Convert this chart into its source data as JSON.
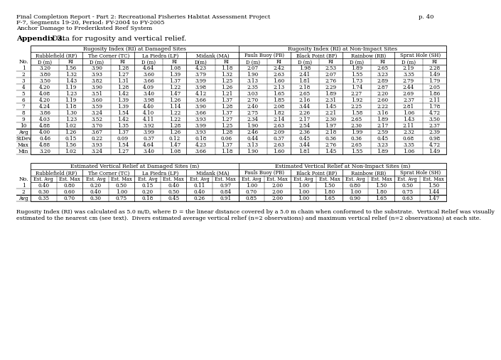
{
  "header_line1": "Final Completion Report - Part 2: Recreational Fisheries Habitat Assessment Project",
  "header_line2": "F-7, Segments 19-20, Period: FY-2004 to FY-2005",
  "header_line3": "Anchor Damage to Frederiksted Reef System",
  "page_num": "p. 40",
  "appendix_title": "Appendix 3.",
  "appendix_subtitle": " Data for rugosity and vertical relief.",
  "table1_title": "Rugosity Index (RI) at Damaged Sites",
  "table1_subtitle_right": "Rugosity Index (RI) at Non-Impact Sites",
  "site_groups_t1": [
    "Rubblefield (RF)",
    "The Corner (TC)",
    "La Piedra (LP)",
    "Midank (MA)",
    "Pauls Buoy (PB)",
    "Black Point (BP)",
    "Rainbow (RB)",
    "Sprat Hole (SH)"
  ],
  "table1_data": [
    [
      "1",
      "3.20",
      "1.56",
      "3.90",
      "1.28",
      "4.64",
      "1.08",
      "4.23",
      "1.18",
      "2.07",
      "2.42",
      "1.98",
      "2.53",
      "1.89",
      "2.65",
      "2.19",
      "2.28"
    ],
    [
      "2",
      "3.80",
      "1.32",
      "3.93",
      "1.27",
      "3.60",
      "1.39",
      "3.79",
      "1.32",
      "1.90",
      "2.63",
      "2.41",
      "2.07",
      "1.55",
      "3.23",
      "3.35",
      "1.49"
    ],
    [
      "3",
      "3.50",
      "1.43",
      "3.82",
      "1.31",
      "3.66",
      "1.37",
      "3.99",
      "1.25",
      "3.13",
      "1.60",
      "1.81",
      "2.76",
      "1.73",
      "2.89",
      "2.79",
      "1.79"
    ],
    [
      "4",
      "4.20",
      "1.19",
      "3.90",
      "1.28",
      "4.09",
      "1.22",
      "3.98",
      "1.26",
      "2.35",
      "2.13",
      "2.18",
      "2.29",
      "1.74",
      "2.87",
      "2.44",
      "2.05"
    ],
    [
      "5",
      "4.08",
      "1.23",
      "3.51",
      "1.42",
      "3.40",
      "1.47",
      "4.12",
      "1.21",
      "3.03",
      "1.65",
      "2.65",
      "1.89",
      "2.27",
      "2.20",
      "2.69",
      "1.86"
    ],
    [
      "6",
      "4.20",
      "1.19",
      "3.60",
      "1.39",
      "3.98",
      "1.26",
      "3.66",
      "1.37",
      "2.70",
      "1.85",
      "2.16",
      "2.31",
      "1.92",
      "2.60",
      "2.37",
      "2.11"
    ],
    [
      "7",
      "4.24",
      "1.18",
      "3.59",
      "1.39",
      "4.40",
      "1.14",
      "3.90",
      "1.28",
      "2.40",
      "2.08",
      "3.44",
      "1.45",
      "2.25",
      "2.22",
      "2.81",
      "1.78"
    ],
    [
      "8",
      "3.86",
      "1.30",
      "3.24",
      "1.54",
      "4.10",
      "1.22",
      "3.66",
      "1.37",
      "2.75",
      "1.82",
      "2.26",
      "2.21",
      "1.58",
      "3.16",
      "1.06",
      "4.72"
    ],
    [
      "9",
      "4.03",
      "1.23",
      "3.52",
      "1.42",
      "4.11",
      "1.22",
      "3.93",
      "1.27",
      "2.34",
      "2.14",
      "2.17",
      "2.30",
      "2.65",
      "1.89",
      "1.43",
      "3.50"
    ],
    [
      "10",
      "4.88",
      "1.02",
      "3.70",
      "1.35",
      "3.92",
      "1.28",
      "3.99",
      "1.25",
      "1.90",
      "2.63",
      "2.54",
      "1.97",
      "2.30",
      "2.17",
      "2.11",
      "2.37"
    ]
  ],
  "table1_stats": [
    [
      "Avg",
      "4.00",
      "1.26",
      "3.67",
      "1.37",
      "3.99",
      "1.26",
      "3.93",
      "1.28",
      "2.46",
      "2.09",
      "2.36",
      "2.18",
      "1.99",
      "2.59",
      "2.32",
      "2.39"
    ],
    [
      "StDev",
      "0.46",
      "0.15",
      "0.22",
      "0.09",
      "0.37",
      "0.12",
      "0.18",
      "0.06",
      "0.44",
      "0.37",
      "0.45",
      "0.36",
      "0.36",
      "0.45",
      "0.68",
      "0.98"
    ],
    [
      "Max",
      "4.88",
      "1.56",
      "3.93",
      "1.54",
      "4.64",
      "1.47",
      "4.23",
      "1.37",
      "3.13",
      "2.63",
      "3.44",
      "2.76",
      "2.65",
      "3.23",
      "3.35",
      "4.72"
    ],
    [
      "Min",
      "3.20",
      "1.02",
      "3.24",
      "1.27",
      "3.40",
      "1.08",
      "3.66",
      "1.18",
      "1.90",
      "1.60",
      "1.81",
      "1.45",
      "1.55",
      "1.89",
      "1.06",
      "1.49"
    ]
  ],
  "table2_title": "Estimated Vertical Relief at Damaged Sites (m)",
  "table2_title_right": "Estimated Vertical Relief at Non-Impact Sites (m)",
  "table2_data": [
    [
      "1",
      "0.40",
      "0.80",
      "0.20",
      "0.50",
      "0.15",
      "0.40",
      "0.11",
      "0.97",
      "1.00",
      "2.00",
      "1.00",
      "1.50",
      "0.80",
      "1.50",
      "0.50",
      "1.50"
    ],
    [
      "2",
      "0.30",
      "0.60",
      "0.40",
      "1.00",
      "0.20",
      "0.50",
      "0.40",
      "0.84",
      "0.70",
      "2.00",
      "1.00",
      "1.80",
      "1.00",
      "1.80",
      "0.75",
      "1.44"
    ]
  ],
  "table2_avg": [
    "Avg",
    "0.35",
    "0.70",
    "0.30",
    "0.75",
    "0.18",
    "0.45",
    "0.26",
    "0.91",
    "0.85",
    "2.00",
    "1.00",
    "1.65",
    "0.90",
    "1.65",
    "0.63",
    "1.47"
  ],
  "footnote_line1": "Rugosity Index (RI) was calculated as 5.0 m/D, where D = the linear distance covered by a 5.0 m chain when conformed to the substrate.  Vertical Relief was visually",
  "footnote_line2": "estimated to the nearest cm (see text).  Divers estimated average vertical relief (n=2 observations) and maximum vertical relief (n=2 observations) at each site."
}
